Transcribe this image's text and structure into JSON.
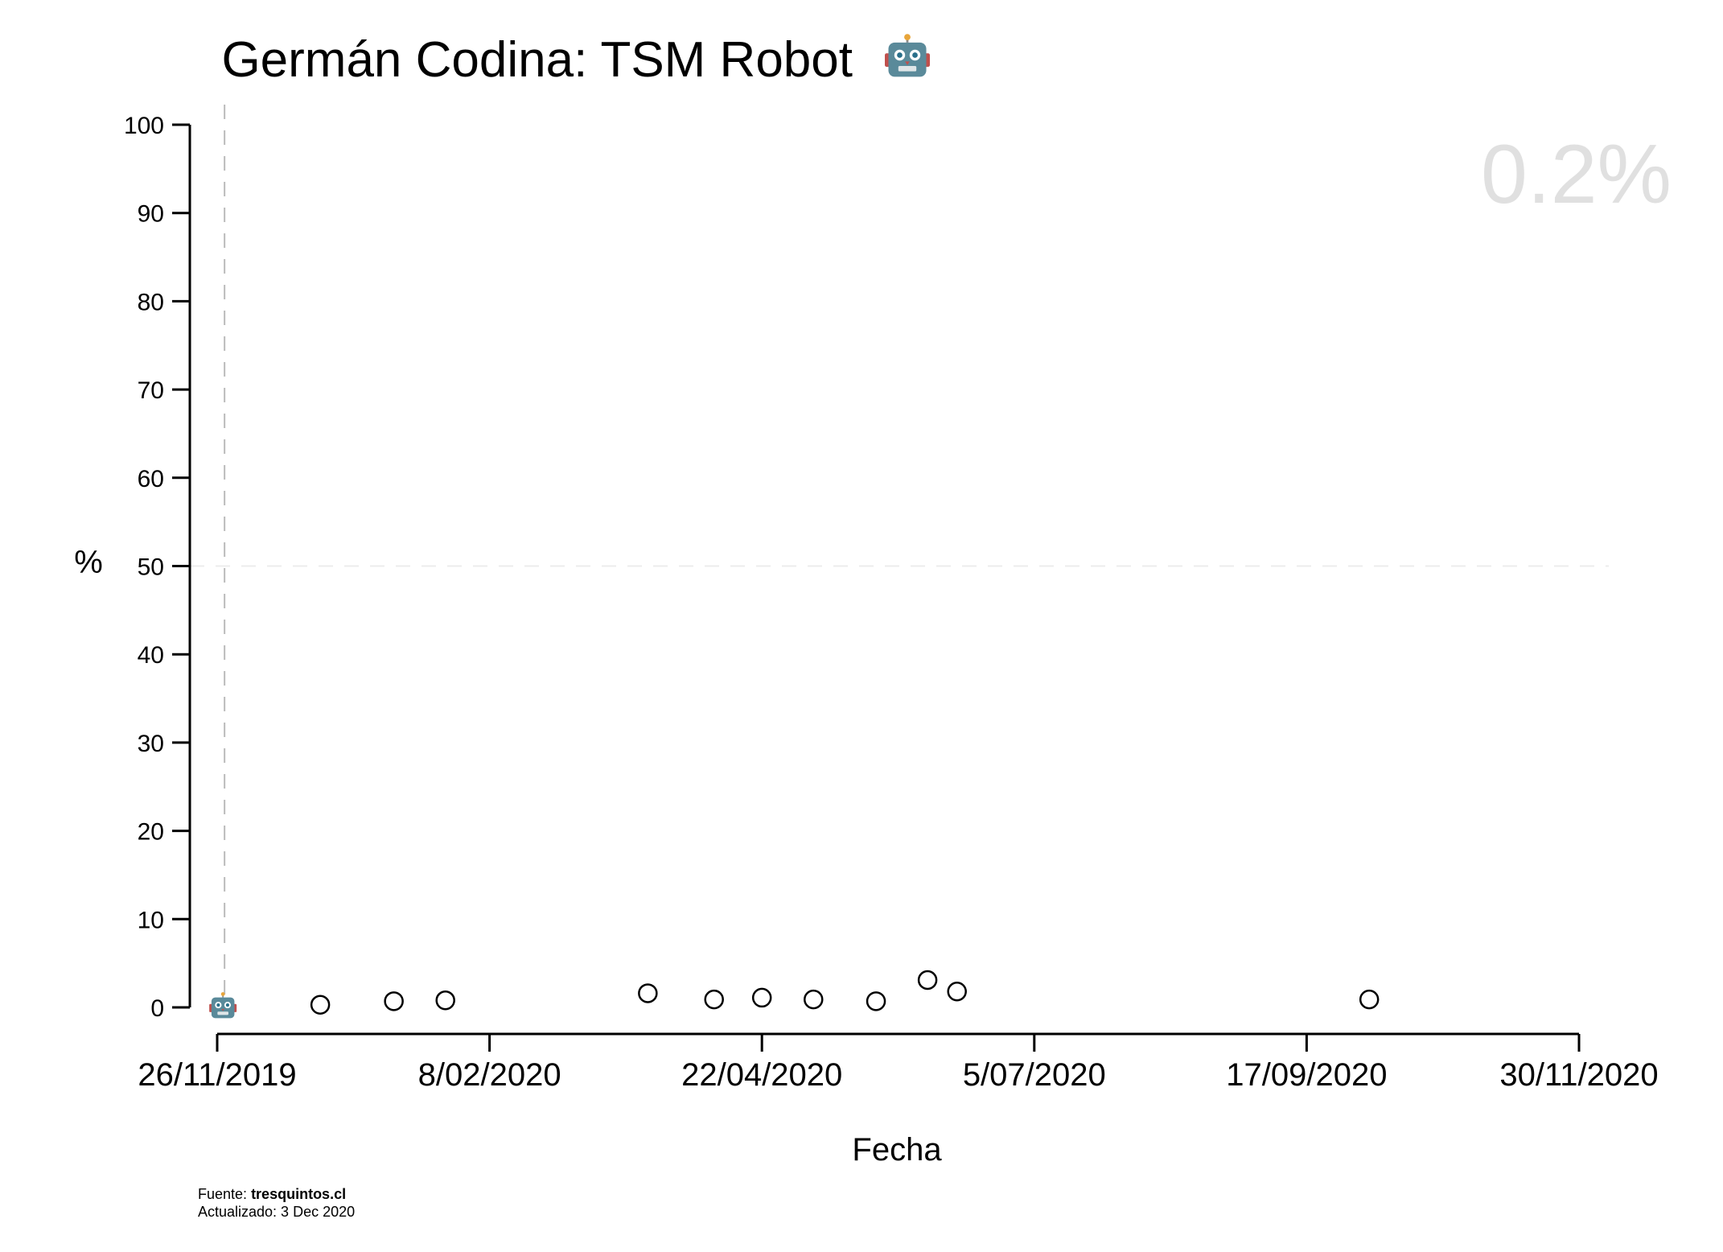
{
  "chart_data": {
    "type": "scatter",
    "title": "Germán Codina: TSM Robot",
    "title_icon": "robot-icon",
    "xlabel": "Fecha",
    "ylabel": "%",
    "ylim": [
      0,
      100
    ],
    "yticks": [
      0,
      10,
      20,
      30,
      40,
      50,
      60,
      70,
      80,
      90,
      100
    ],
    "xlim": [
      "2019-11-26",
      "2020-11-30"
    ],
    "xticks": [
      "2019-11-26",
      "2020-02-08",
      "2020-04-22",
      "2020-07-05",
      "2020-09-17",
      "2020-11-30"
    ],
    "xtick_labels": [
      "26/11/2019",
      "8/02/2020",
      "22/04/2020",
      "5/07/2020",
      "17/09/2020",
      "30/11/2020"
    ],
    "reference_lines": {
      "y": 50,
      "x": "2019-11-28"
    },
    "latest_value_label": "0.2%",
    "latest_marker_icon": "robot-icon",
    "latest_point": {
      "x": "2019-11-28",
      "y": 0.2
    },
    "points": [
      {
        "x": "2019-12-24",
        "y": 0.3
      },
      {
        "x": "2020-01-13",
        "y": 0.7
      },
      {
        "x": "2020-01-27",
        "y": 0.8
      },
      {
        "x": "2020-03-22",
        "y": 1.6
      },
      {
        "x": "2020-04-09",
        "y": 0.9
      },
      {
        "x": "2020-04-22",
        "y": 1.1
      },
      {
        "x": "2020-05-06",
        "y": 0.9
      },
      {
        "x": "2020-05-23",
        "y": 0.7
      },
      {
        "x": "2020-06-06",
        "y": 3.1
      },
      {
        "x": "2020-06-14",
        "y": 1.8
      },
      {
        "x": "2020-10-04",
        "y": 0.9
      }
    ],
    "grid": false,
    "colors": {
      "marker": "#000000",
      "reference": "#bbbbbb",
      "big_value": "#e0e0e0"
    }
  },
  "footer": {
    "source_label": "Fuente:",
    "source_value": "tresquintos.cl",
    "updated_label": "Actualizado: 3 Dec 2020"
  }
}
